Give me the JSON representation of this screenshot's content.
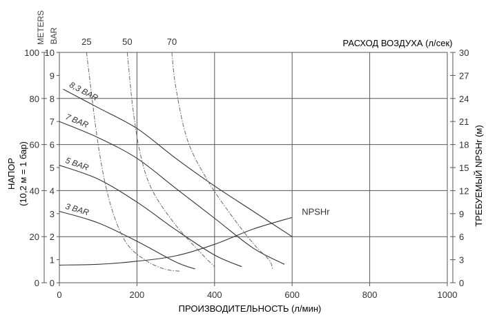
{
  "chart_data": {
    "type": "line",
    "x_axis": {
      "label": "ПРОИЗВОДИТЕЛЬНОСТЬ (л/мин)",
      "ticks": [
        0,
        200,
        400,
        600,
        800,
        1000
      ],
      "range": [
        0,
        1000
      ]
    },
    "y_left_meters": {
      "unit_label": "METERS",
      "ticks": [
        0,
        20,
        40,
        60,
        80,
        100
      ],
      "range": [
        0,
        100
      ]
    },
    "y_left_bar": {
      "unit_label": "BAR",
      "ticks": [
        0,
        1,
        2,
        3,
        4,
        5,
        6,
        7,
        8,
        9,
        10
      ],
      "range": [
        0,
        10
      ]
    },
    "y_left_title": [
      "НАПОР",
      "(10,2 м = 1 бар)"
    ],
    "y_right": {
      "label": "ТРЕБУЕМЫЙ NPSHr (м)",
      "ticks": [
        0,
        3,
        6,
        9,
        12,
        15,
        18,
        21,
        24,
        27,
        30
      ],
      "range": [
        0,
        30
      ]
    },
    "top_axis": {
      "label": "РАСХОД ВОЗДУХА (л/сек)",
      "ticks": [
        25,
        50,
        70
      ]
    },
    "series": [
      {
        "name": "8,3 BAR",
        "style": "solid",
        "x": [
          10,
          100,
          200,
          300,
          400,
          500,
          600
        ],
        "y": [
          84,
          76,
          67,
          54,
          42,
          31,
          20
        ]
      },
      {
        "name": "7 BAR",
        "style": "solid",
        "x": [
          0,
          100,
          200,
          300,
          400,
          500,
          580
        ],
        "y": [
          70,
          63,
          54,
          41,
          28,
          15,
          8
        ]
      },
      {
        "name": "5 BAR",
        "style": "solid",
        "x": [
          0,
          100,
          200,
          300,
          400,
          470
        ],
        "y": [
          51,
          45,
          35,
          23,
          12,
          7
        ]
      },
      {
        "name": "3 BAR",
        "style": "solid",
        "x": [
          0,
          100,
          200,
          300,
          350
        ],
        "y": [
          31,
          26,
          18,
          9,
          6
        ]
      },
      {
        "name": "NPSHr",
        "style": "solid",
        "axis": "right",
        "x": [
          0,
          100,
          200,
          300,
          400,
          500,
          600
        ],
        "y": [
          2.3,
          2.4,
          2.8,
          3.5,
          5,
          7,
          8.5
        ]
      },
      {
        "name": "25",
        "style": "dashdot",
        "x": [
          70,
          100,
          130,
          170,
          220,
          270,
          310
        ],
        "y": [
          100,
          60,
          35,
          18,
          10,
          6,
          5
        ]
      },
      {
        "name": "50",
        "style": "dashdot",
        "x": [
          175,
          190,
          210,
          240,
          300,
          370,
          400
        ],
        "y": [
          100,
          75,
          55,
          40,
          25,
          12,
          7
        ]
      },
      {
        "name": "70",
        "style": "dashdot",
        "x": [
          290,
          300,
          330,
          380,
          440,
          500,
          540,
          550
        ],
        "y": [
          100,
          85,
          62,
          45,
          30,
          17,
          10,
          6
        ]
      }
    ]
  }
}
